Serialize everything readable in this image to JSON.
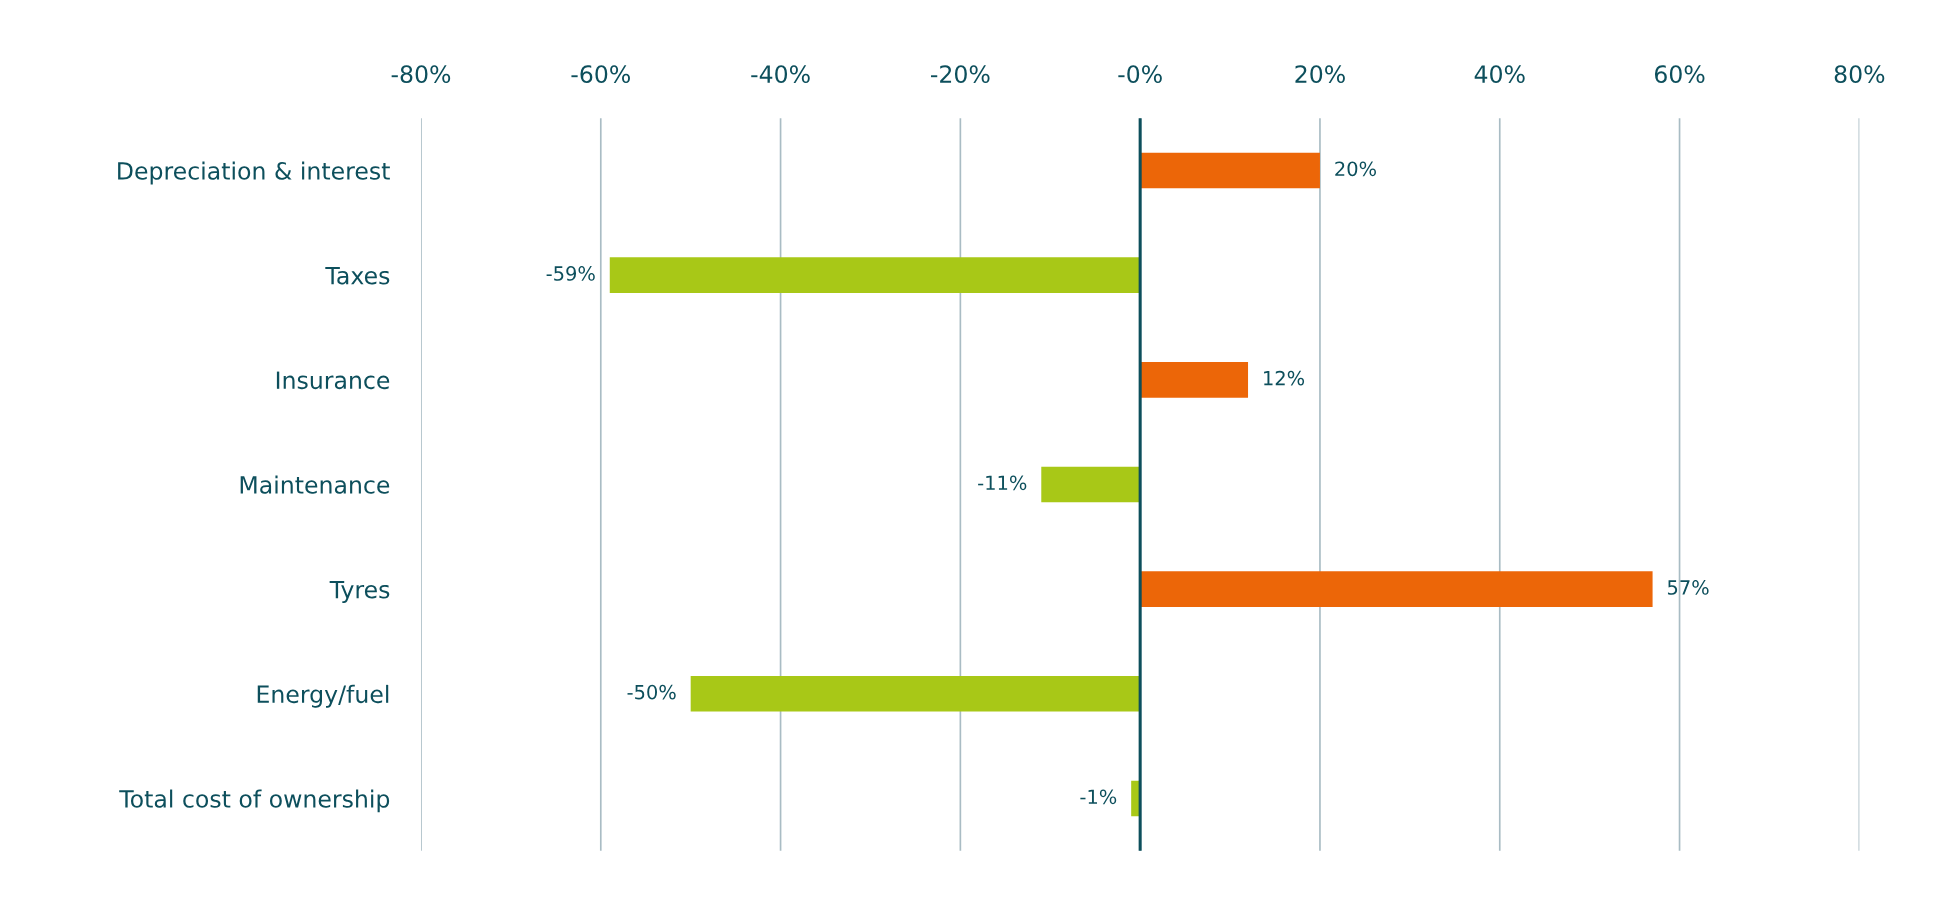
{
  "chart_data": {
    "type": "bar",
    "orientation": "horizontal",
    "categories": [
      "Depreciation & interest",
      "Taxes",
      "Insurance",
      "Maintenance",
      "Tyres",
      "Energy/fuel",
      "Total cost of ownership"
    ],
    "values": [
      20,
      -59,
      12,
      -11,
      57,
      -50,
      -1
    ],
    "colors": [
      "#ec6608",
      "#a8c817",
      "#ec6608",
      "#a8c817",
      "#ec6608",
      "#a8c817",
      "#a8c817"
    ],
    "value_labels": [
      "20%",
      "-59%",
      "12%",
      "-11%",
      "57%",
      "-50%",
      "-1%"
    ],
    "xlim": [
      -80,
      80
    ],
    "xticks": [
      {
        "value": -80,
        "label": "-80%"
      },
      {
        "value": -60,
        "label": "-60%"
      },
      {
        "value": -40,
        "label": "-40%"
      },
      {
        "value": -20,
        "label": "-20%"
      },
      {
        "value": 0,
        "label": "-0%"
      },
      {
        "value": 20,
        "label": "20%"
      },
      {
        "value": 40,
        "label": "40%"
      },
      {
        "value": 60,
        "label": "60%"
      },
      {
        "value": 80,
        "label": "80%"
      }
    ],
    "grid": "x",
    "ref_lines": [
      {
        "axis": "x",
        "value": 0,
        "color": "#0d4f5c"
      }
    ]
  }
}
